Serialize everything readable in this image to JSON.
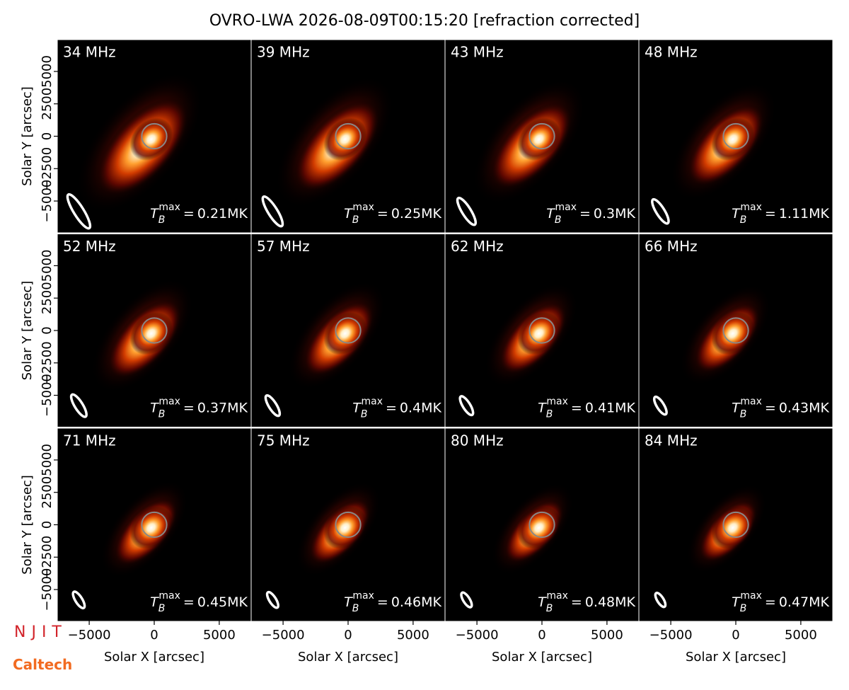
{
  "title": "OVRO-LWA 2026-08-09T00:15:20 [refraction corrected]",
  "logos": [
    "NJIT",
    "Caltech"
  ],
  "chart_data": [
    {
      "type": "image",
      "frequency": {
        "value": 34,
        "label": "34 MHz"
      },
      "annotation": {
        "symbol": "T",
        "subscript": "B",
        "superscript": "max",
        "relation": "=",
        "value": 0.21,
        "label": "0.21MK"
      },
      "xlim": [
        -7400,
        7400
      ],
      "ylim": [
        -7400,
        7400
      ],
      "ylabel": "Solar Y [arcsec]",
      "yticks": [
        {
          "value": -5000,
          "label": "−5000"
        },
        {
          "value": -2500,
          "label": "−2500"
        },
        0,
        2500,
        5000
      ]
    },
    {
      "type": "image",
      "frequency": {
        "value": 39,
        "label": "39 MHz"
      },
      "annotation": {
        "symbol": "T",
        "subscript": "B",
        "superscript": "max",
        "relation": "=",
        "value": 0.25,
        "label": "0.25MK"
      },
      "xlim": [
        -7400,
        7400
      ],
      "ylim": [
        -7400,
        7400
      ]
    },
    {
      "type": "image",
      "frequency": {
        "value": 43,
        "label": "43 MHz"
      },
      "annotation": {
        "symbol": "T",
        "subscript": "B",
        "superscript": "max",
        "relation": "=",
        "value": 0.3,
        "label": "0.3MK"
      },
      "xlim": [
        -7400,
        7400
      ],
      "ylim": [
        -7400,
        7400
      ]
    },
    {
      "type": "image",
      "frequency": {
        "value": 48,
        "label": "48 MHz"
      },
      "annotation": {
        "symbol": "T",
        "subscript": "B",
        "superscript": "max",
        "relation": "=",
        "value": 1.11,
        "label": "1.11MK"
      },
      "xlim": [
        -7400,
        7400
      ],
      "ylim": [
        -7400,
        7400
      ]
    },
    {
      "type": "image",
      "frequency": {
        "value": 52,
        "label": "52 MHz"
      },
      "annotation": {
        "symbol": "T",
        "subscript": "B",
        "superscript": "max",
        "relation": "=",
        "value": 0.37,
        "label": "0.37MK"
      },
      "xlim": [
        -7400,
        7400
      ],
      "ylim": [
        -7400,
        7400
      ],
      "ylabel": "Solar Y [arcsec]",
      "yticks": [
        {
          "value": -5000,
          "label": "−5000"
        },
        {
          "value": -2500,
          "label": "−2500"
        },
        0,
        2500,
        5000
      ]
    },
    {
      "type": "image",
      "frequency": {
        "value": 57,
        "label": "57 MHz"
      },
      "annotation": {
        "symbol": "T",
        "subscript": "B",
        "superscript": "max",
        "relation": "=",
        "value": 0.4,
        "label": "0.4MK"
      },
      "xlim": [
        -7400,
        7400
      ],
      "ylim": [
        -7400,
        7400
      ]
    },
    {
      "type": "image",
      "frequency": {
        "value": 62,
        "label": "62 MHz"
      },
      "annotation": {
        "symbol": "T",
        "subscript": "B",
        "superscript": "max",
        "relation": "=",
        "value": 0.41,
        "label": "0.41MK"
      },
      "xlim": [
        -7400,
        7400
      ],
      "ylim": [
        -7400,
        7400
      ]
    },
    {
      "type": "image",
      "frequency": {
        "value": 66,
        "label": "66 MHz"
      },
      "annotation": {
        "symbol": "T",
        "subscript": "B",
        "superscript": "max",
        "relation": "=",
        "value": 0.43,
        "label": "0.43MK"
      },
      "xlim": [
        -7400,
        7400
      ],
      "ylim": [
        -7400,
        7400
      ]
    },
    {
      "type": "image",
      "frequency": {
        "value": 71,
        "label": "71 MHz"
      },
      "annotation": {
        "symbol": "T",
        "subscript": "B",
        "superscript": "max",
        "relation": "=",
        "value": 0.45,
        "label": "0.45MK"
      },
      "xlim": [
        -7400,
        7400
      ],
      "ylim": [
        -7400,
        7400
      ],
      "ylabel": "Solar Y [arcsec]",
      "yticks": [
        {
          "value": -5000,
          "label": "−5000"
        },
        {
          "value": -2500,
          "label": "−2500"
        },
        0,
        2500,
        5000
      ],
      "xlabel": "Solar X [arcsec]",
      "xticks": [
        {
          "value": -5000,
          "label": "−5000"
        },
        0,
        5000
      ]
    },
    {
      "type": "image",
      "frequency": {
        "value": 75,
        "label": "75 MHz"
      },
      "annotation": {
        "symbol": "T",
        "subscript": "B",
        "superscript": "max",
        "relation": "=",
        "value": 0.46,
        "label": "0.46MK"
      },
      "xlim": [
        -7400,
        7400
      ],
      "ylim": [
        -7400,
        7400
      ],
      "xlabel": "Solar X [arcsec]",
      "xticks": [
        {
          "value": -5000,
          "label": "−5000"
        },
        0,
        5000
      ]
    },
    {
      "type": "image",
      "frequency": {
        "value": 80,
        "label": "80 MHz"
      },
      "annotation": {
        "symbol": "T",
        "subscript": "B",
        "superscript": "max",
        "relation": "=",
        "value": 0.48,
        "label": "0.48MK"
      },
      "xlim": [
        -7400,
        7400
      ],
      "ylim": [
        -7400,
        7400
      ],
      "xlabel": "Solar X [arcsec]",
      "xticks": [
        {
          "value": -5000,
          "label": "−5000"
        },
        0,
        5000
      ]
    },
    {
      "type": "image",
      "frequency": {
        "value": 84,
        "label": "84 MHz"
      },
      "annotation": {
        "symbol": "T",
        "subscript": "B",
        "superscript": "max",
        "relation": "=",
        "value": 0.47,
        "label": "0.47MK"
      },
      "xlim": [
        -7400,
        7400
      ],
      "ylim": [
        -7400,
        7400
      ],
      "xlabel": "Solar X [arcsec]",
      "xticks": [
        {
          "value": -5000,
          "label": "−5000"
        },
        0,
        5000
      ]
    }
  ]
}
